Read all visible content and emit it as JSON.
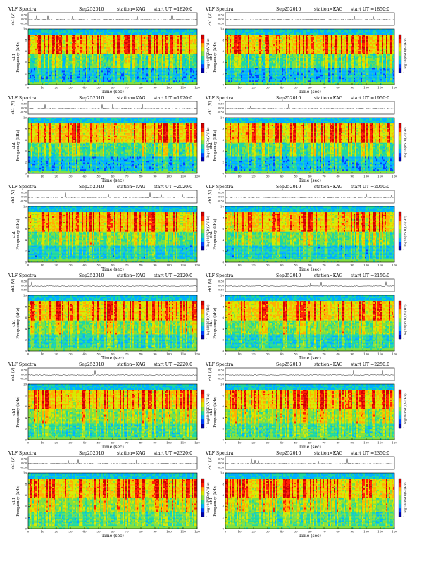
{
  "figure": {
    "title_left": "VLF Spectra",
    "date": "Sep252010",
    "station": "station=KAG",
    "start_prefix": "start UT =",
    "ch_label": "ch1 (V)",
    "freq_label": "ch1",
    "freq_label2": "Frequency (kHz)",
    "time_label": "Time (sec)",
    "cbar_label": "log10(PSD)(V²/Hz)"
  },
  "colormap": [
    "#0000aa",
    "#0040ff",
    "#00b0ff",
    "#20d8a0",
    "#80e040",
    "#d8e800",
    "#ffb000",
    "#ff2000",
    "#d00000"
  ],
  "chart_data": [
    {
      "type": "heatmap",
      "title": "VLF Spectra",
      "start_ut": "1820:0",
      "xlim": [
        0,
        120
      ],
      "ylim": [
        0,
        10
      ],
      "waveform_ylim": [
        -0.3,
        0.3
      ],
      "xticks": [
        0,
        10,
        20,
        30,
        40,
        50,
        60,
        70,
        80,
        90,
        100,
        110,
        120
      ],
      "yticks": [
        0,
        2,
        4,
        6,
        8,
        10
      ],
      "wave_ticks": [
        "0.30",
        "0.00",
        "-0.30"
      ],
      "xlabel": "Time (sec)",
      "ylabel": "Frequency (kHz)",
      "column": "left",
      "row": 0,
      "quiet_band": 0.5
    },
    {
      "type": "heatmap",
      "title": "VLF Spectra",
      "start_ut": "1850:0",
      "xlim": [
        0,
        120
      ],
      "ylim": [
        0,
        10
      ],
      "waveform_ylim": [
        -0.3,
        0.3
      ],
      "xticks": [
        0,
        10,
        20,
        30,
        40,
        50,
        60,
        70,
        80,
        90,
        100,
        110,
        120
      ],
      "yticks": [
        0,
        2,
        4,
        6,
        8,
        10
      ],
      "wave_ticks": [
        "0.30",
        "0.00",
        "-0.30"
      ],
      "xlabel": "Time (sec)",
      "ylabel": "Frequency (kHz)",
      "column": "right",
      "row": 0,
      "quiet_band": 0.5
    },
    {
      "type": "heatmap",
      "title": "VLF Spectra",
      "start_ut": "1920:0",
      "xlim": [
        0,
        120
      ],
      "ylim": [
        0,
        10
      ],
      "waveform_ylim": [
        -0.3,
        0.3
      ],
      "xticks": [
        0,
        10,
        20,
        30,
        40,
        50,
        60,
        70,
        80,
        90,
        100,
        110,
        120
      ],
      "yticks": [
        0,
        2,
        4,
        6,
        8,
        10
      ],
      "wave_ticks": [
        "0.30",
        "0.00",
        "-0.30"
      ],
      "xlabel": "Time (sec)",
      "ylabel": "Frequency (kHz)",
      "column": "left",
      "row": 1,
      "quiet_band": 0.5
    },
    {
      "type": "heatmap",
      "title": "VLF Spectra",
      "start_ut": "1950:0",
      "xlim": [
        0,
        120
      ],
      "ylim": [
        0,
        10
      ],
      "waveform_ylim": [
        -0.3,
        0.3
      ],
      "xticks": [
        0,
        10,
        20,
        30,
        40,
        50,
        60,
        70,
        80,
        90,
        100,
        110,
        120
      ],
      "yticks": [
        0,
        2,
        4,
        6,
        8,
        10
      ],
      "wave_ticks": [
        "0.30",
        "0.00",
        "-0.30"
      ],
      "xlabel": "Time (sec)",
      "ylabel": "Frequency (kHz)",
      "column": "right",
      "row": 1,
      "quiet_band": 0.5
    },
    {
      "type": "heatmap",
      "title": "VLF Spectra",
      "start_ut": "2020:0",
      "xlim": [
        0,
        120
      ],
      "ylim": [
        0,
        10
      ],
      "waveform_ylim": [
        -0.3,
        0.3
      ],
      "xticks": [
        0,
        10,
        20,
        30,
        40,
        50,
        60,
        70,
        80,
        90,
        100,
        110,
        120
      ],
      "yticks": [
        0,
        2,
        4,
        6,
        8,
        10
      ],
      "wave_ticks": [
        "0.30",
        "0.00",
        "-0.30"
      ],
      "xlabel": "Time (sec)",
      "ylabel": "Frequency (kHz)",
      "column": "left",
      "row": 2,
      "quiet_band": 0.35
    },
    {
      "type": "heatmap",
      "title": "VLF Spectra",
      "start_ut": "2050:0",
      "xlim": [
        0,
        120
      ],
      "ylim": [
        0,
        10
      ],
      "waveform_ylim": [
        -0.3,
        0.3
      ],
      "xticks": [
        0,
        10,
        20,
        30,
        40,
        50,
        60,
        70,
        80,
        90,
        100,
        110,
        120
      ],
      "yticks": [
        0,
        2,
        4,
        6,
        8,
        10
      ],
      "wave_ticks": [
        "0.30",
        "0.00",
        "-0.30"
      ],
      "xlabel": "Time (sec)",
      "ylabel": "Frequency (kHz)",
      "column": "right",
      "row": 2,
      "quiet_band": 0.35
    },
    {
      "type": "heatmap",
      "title": "VLF Spectra",
      "start_ut": "2120:0",
      "xlim": [
        0,
        120
      ],
      "ylim": [
        0,
        10
      ],
      "waveform_ylim": [
        -0.3,
        0.3
      ],
      "xticks": [
        0,
        10,
        20,
        30,
        40,
        50,
        60,
        70,
        80,
        90,
        100,
        110,
        120
      ],
      "yticks": [
        0,
        2,
        4,
        6,
        8,
        10
      ],
      "wave_ticks": [
        "0.30",
        "0.00",
        "-0.30"
      ],
      "xlabel": "Time (sec)",
      "ylabel": "Frequency (kHz)",
      "column": "left",
      "row": 3,
      "quiet_band": 0.25
    },
    {
      "type": "heatmap",
      "title": "VLF Spectra",
      "start_ut": "2150:0",
      "xlim": [
        0,
        120
      ],
      "ylim": [
        0,
        10
      ],
      "waveform_ylim": [
        -0.3,
        0.3
      ],
      "xticks": [
        0,
        10,
        20,
        30,
        40,
        50,
        60,
        70,
        80,
        90,
        100,
        110,
        120
      ],
      "yticks": [
        0,
        2,
        4,
        6,
        8,
        10
      ],
      "wave_ticks": [
        "0.30",
        "0.00",
        "-0.30"
      ],
      "xlabel": "Time (sec)",
      "ylabel": "Frequency (kHz)",
      "column": "right",
      "row": 3,
      "quiet_band": 0.25
    },
    {
      "type": "heatmap",
      "title": "VLF Spectra",
      "start_ut": "2220:0",
      "xlim": [
        0,
        120
      ],
      "ylim": [
        0,
        10
      ],
      "waveform_ylim": [
        -0.3,
        0.3
      ],
      "xticks": [
        0,
        10,
        20,
        30,
        40,
        50,
        60,
        70,
        80,
        90,
        100,
        110,
        120
      ],
      "yticks": [
        0,
        2,
        4,
        6,
        8,
        10
      ],
      "wave_ticks": [
        "0.30",
        "0.00",
        "-0.30"
      ],
      "xlabel": "Time (sec)",
      "ylabel": "Frequency (kHz)",
      "column": "left",
      "row": 4,
      "quiet_band": 0.15
    },
    {
      "type": "heatmap",
      "title": "VLF Spectra",
      "start_ut": "2250:0",
      "xlim": [
        0,
        120
      ],
      "ylim": [
        0,
        10
      ],
      "waveform_ylim": [
        -0.3,
        0.3
      ],
      "xticks": [
        0,
        10,
        20,
        30,
        40,
        50,
        60,
        70,
        80,
        90,
        100,
        110,
        120
      ],
      "yticks": [
        0,
        2,
        4,
        6,
        8,
        10
      ],
      "wave_ticks": [
        "0.30",
        "0.00",
        "-0.30"
      ],
      "xlabel": "Time (sec)",
      "ylabel": "Frequency (kHz)",
      "column": "right",
      "row": 4,
      "quiet_band": 0.15
    },
    {
      "type": "heatmap",
      "title": "VLF Spectra",
      "start_ut": "2320:0",
      "xlim": [
        0,
        120
      ],
      "ylim": [
        0,
        10
      ],
      "waveform_ylim": [
        -0.3,
        0.3
      ],
      "xticks": [
        0,
        10,
        20,
        30,
        40,
        50,
        60,
        70,
        80,
        90,
        100,
        110,
        120
      ],
      "yticks": [
        0,
        2,
        4,
        6,
        8,
        10
      ],
      "wave_ticks": [
        "0.30",
        "0.00",
        "-0.30"
      ],
      "xlabel": "Time (sec)",
      "ylabel": "Frequency (kHz)",
      "column": "left",
      "row": 5,
      "quiet_band": 0.1
    },
    {
      "type": "heatmap",
      "title": "VLF Spectra",
      "start_ut": "2350:0",
      "xlim": [
        0,
        120
      ],
      "ylim": [
        0,
        10
      ],
      "waveform_ylim": [
        -0.3,
        0.3
      ],
      "xticks": [
        0,
        10,
        20,
        30,
        40,
        50,
        60,
        70,
        80,
        90,
        100,
        110,
        120
      ],
      "yticks": [
        0,
        2,
        4,
        6,
        8,
        10
      ],
      "wave_ticks": [
        "0.30",
        "0.00",
        "-0.30"
      ],
      "xlabel": "Time (sec)",
      "ylabel": "Frequency (kHz)",
      "column": "right",
      "row": 5,
      "quiet_band": 0.1
    }
  ]
}
